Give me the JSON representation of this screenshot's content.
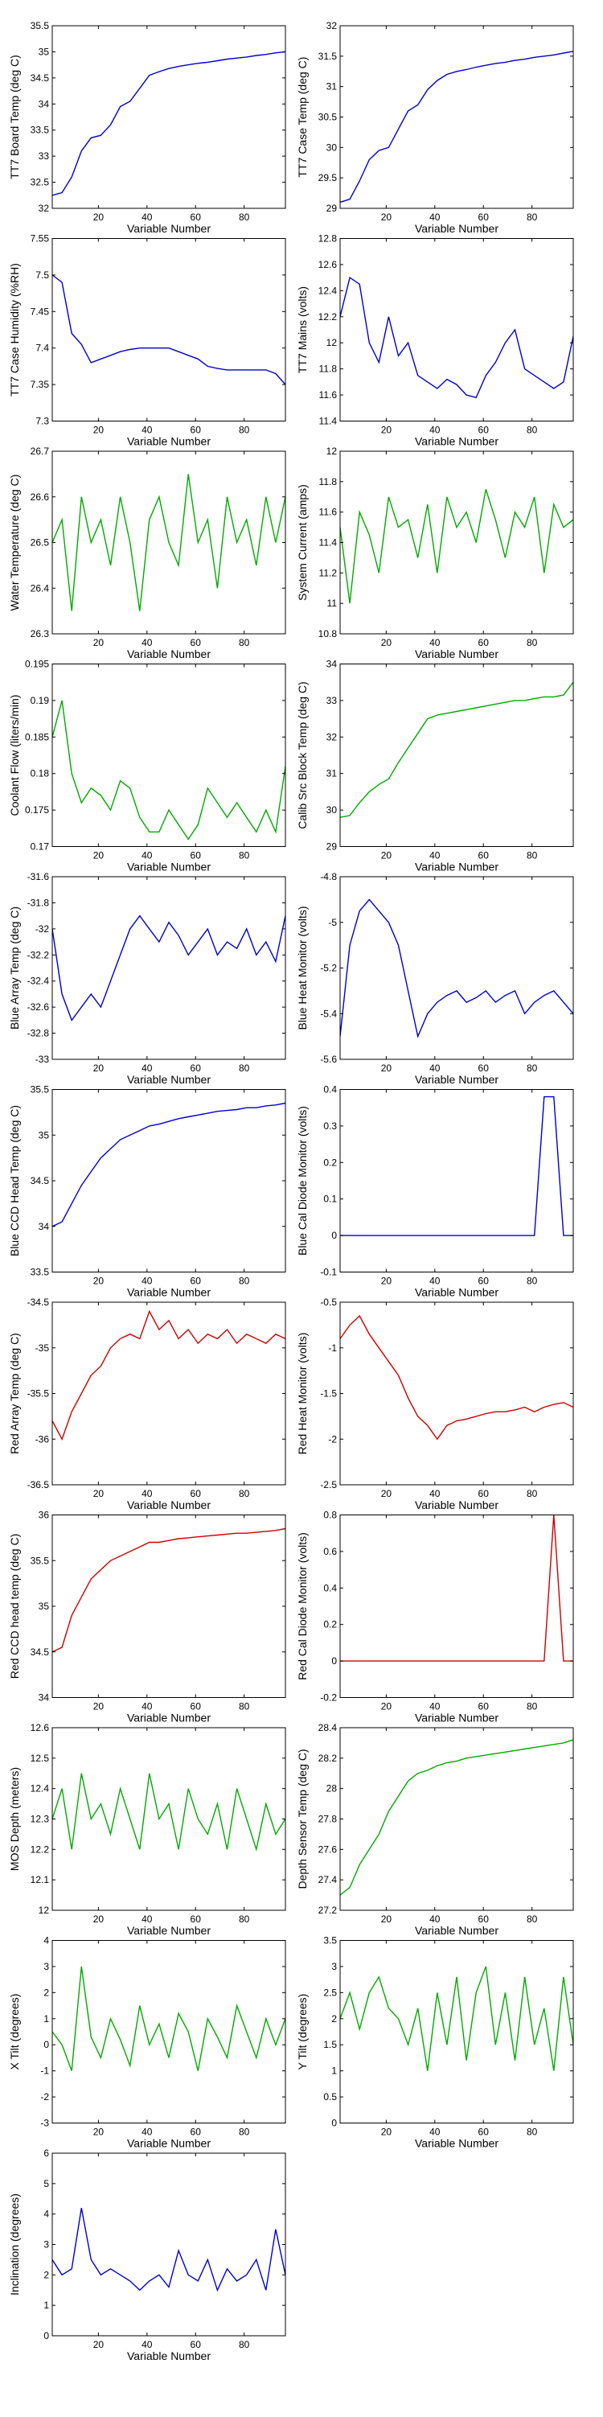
{
  "figure": {
    "colors": {
      "blue": "#0000cc",
      "green": "#00aa00",
      "red": "#cc0000",
      "axis": "#000000"
    }
  },
  "chart_data": [
    {
      "type": "line",
      "xlabel": "Variable Number",
      "ylabel": "TT7 Board Temp (deg C)",
      "color": "blue",
      "xlim": [
        1,
        97
      ],
      "ylim": [
        32,
        35.5
      ],
      "yticks": [
        "32",
        "32.5",
        "33",
        "33.5",
        "34",
        "34.5",
        "35",
        "35.5"
      ],
      "xticks": [
        "20",
        "40",
        "60",
        "80"
      ],
      "x_start": 1,
      "x_step": 4,
      "values": [
        32.25,
        32.3,
        32.6,
        33.1,
        33.35,
        33.4,
        33.6,
        33.95,
        34.05,
        34.3,
        34.55,
        34.62,
        34.68,
        34.72,
        34.75,
        34.78,
        34.8,
        34.83,
        34.86,
        34.88,
        34.9,
        34.93,
        34.95,
        34.98,
        35.0
      ]
    },
    {
      "type": "line",
      "xlabel": "Variable Number",
      "ylabel": "TT7 Case Temp (deg C)",
      "color": "blue",
      "xlim": [
        1,
        97
      ],
      "ylim": [
        29,
        32
      ],
      "yticks": [
        "29",
        "29.5",
        "30",
        "30.5",
        "31",
        "31.5",
        "32"
      ],
      "xticks": [
        "20",
        "40",
        "60",
        "80"
      ],
      "x_start": 1,
      "x_step": 4,
      "values": [
        29.1,
        29.15,
        29.45,
        29.8,
        29.95,
        30.0,
        30.3,
        30.6,
        30.7,
        30.95,
        31.1,
        31.2,
        31.25,
        31.28,
        31.32,
        31.35,
        31.38,
        31.4,
        31.43,
        31.45,
        31.48,
        31.5,
        31.52,
        31.55,
        31.58
      ]
    },
    {
      "type": "line",
      "xlabel": "Variable Number",
      "ylabel": "TT7 Case Humidity (%RH)",
      "color": "blue",
      "xlim": [
        1,
        97
      ],
      "ylim": [
        7.3,
        7.55
      ],
      "yticks": [
        "7.3",
        "7.35",
        "7.4",
        "7.45",
        "7.5",
        "7.55"
      ],
      "xticks": [
        "20",
        "40",
        "60",
        "80"
      ],
      "x_start": 1,
      "x_step": 4,
      "values": [
        7.5,
        7.49,
        7.42,
        7.405,
        7.38,
        7.385,
        7.39,
        7.395,
        7.398,
        7.4,
        7.4,
        7.4,
        7.4,
        7.395,
        7.39,
        7.385,
        7.375,
        7.372,
        7.37,
        7.37,
        7.37,
        7.37,
        7.37,
        7.365,
        7.35
      ]
    },
    {
      "type": "line",
      "xlabel": "Variable Number",
      "ylabel": "TT7 Mains  (volts)",
      "color": "blue",
      "xlim": [
        1,
        97
      ],
      "ylim": [
        11.4,
        12.8
      ],
      "yticks": [
        "11.4",
        "11.6",
        "11.8",
        "12",
        "12.2",
        "12.4",
        "12.6",
        "12.8"
      ],
      "xticks": [
        "20",
        "40",
        "60",
        "80"
      ],
      "x_start": 1,
      "x_step": 4,
      "values": [
        12.2,
        12.5,
        12.45,
        12.0,
        11.85,
        12.2,
        11.9,
        12.0,
        11.75,
        11.7,
        11.65,
        11.72,
        11.68,
        11.6,
        11.58,
        11.75,
        11.85,
        12.0,
        12.1,
        11.8,
        11.75,
        11.7,
        11.65,
        11.7,
        12.05
      ]
    },
    {
      "type": "line",
      "xlabel": "Variable Number",
      "ylabel": "Water Temperature (deg C)",
      "color": "green",
      "xlim": [
        1,
        97
      ],
      "ylim": [
        26.3,
        26.7
      ],
      "yticks": [
        "26.3",
        "26.4",
        "26.5",
        "26.6",
        "26.7"
      ],
      "xticks": [
        "20",
        "40",
        "60",
        "80"
      ],
      "x_start": 1,
      "x_step": 4,
      "values": [
        26.5,
        26.55,
        26.35,
        26.6,
        26.5,
        26.55,
        26.45,
        26.6,
        26.5,
        26.35,
        26.55,
        26.6,
        26.5,
        26.45,
        26.65,
        26.5,
        26.55,
        26.4,
        26.6,
        26.5,
        26.55,
        26.45,
        26.6,
        26.5,
        26.6
      ]
    },
    {
      "type": "line",
      "xlabel": "Variable Number",
      "ylabel": "System Current (amps)",
      "color": "green",
      "xlim": [
        1,
        97
      ],
      "ylim": [
        10.8,
        12
      ],
      "yticks": [
        "10.8",
        "11",
        "11.2",
        "11.4",
        "11.6",
        "11.8",
        "12"
      ],
      "xticks": [
        "20",
        "40",
        "60",
        "80"
      ],
      "x_start": 1,
      "x_step": 4,
      "values": [
        11.5,
        11.0,
        11.6,
        11.45,
        11.2,
        11.7,
        11.5,
        11.55,
        11.3,
        11.65,
        11.2,
        11.7,
        11.5,
        11.6,
        11.4,
        11.75,
        11.55,
        11.3,
        11.6,
        11.5,
        11.7,
        11.2,
        11.65,
        11.5,
        11.55
      ]
    },
    {
      "type": "line",
      "xlabel": "Variable Number",
      "ylabel": "Coolant Flow (liters/min)",
      "color": "green",
      "xlim": [
        1,
        97
      ],
      "ylim": [
        0.17,
        0.195
      ],
      "yticks": [
        "0.17",
        "0.175",
        "0.18",
        "0.185",
        "0.19",
        "0.195"
      ],
      "xticks": [
        "20",
        "40",
        "60",
        "80"
      ],
      "x_start": 1,
      "x_step": 4,
      "values": [
        0.185,
        0.19,
        0.18,
        0.176,
        0.178,
        0.177,
        0.175,
        0.179,
        0.178,
        0.174,
        0.172,
        0.172,
        0.175,
        0.173,
        0.171,
        0.173,
        0.178,
        0.176,
        0.174,
        0.176,
        0.174,
        0.172,
        0.175,
        0.172,
        0.181
      ]
    },
    {
      "type": "line",
      "xlabel": "Variable Number",
      "ylabel": "Calib Src Block Temp (deg C)",
      "color": "green",
      "xlim": [
        1,
        97
      ],
      "ylim": [
        29,
        34
      ],
      "yticks": [
        "29",
        "30",
        "31",
        "32",
        "33",
        "34"
      ],
      "xticks": [
        "20",
        "40",
        "60",
        "80"
      ],
      "x_start": 1,
      "x_step": 4,
      "values": [
        29.8,
        29.85,
        30.2,
        30.5,
        30.7,
        30.85,
        31.3,
        31.7,
        32.1,
        32.5,
        32.6,
        32.65,
        32.7,
        32.75,
        32.8,
        32.85,
        32.9,
        32.95,
        33.0,
        33.0,
        33.05,
        33.1,
        33.1,
        33.15,
        33.5
      ]
    },
    {
      "type": "line",
      "xlabel": "Variable Number",
      "ylabel": "Blue Array Temp (deg C)",
      "color": "blue",
      "xlim": [
        1,
        97
      ],
      "ylim": [
        -33,
        -31.6
      ],
      "yticks": [
        "-33",
        "-32.8",
        "-32.6",
        "-32.4",
        "-32.2",
        "-32",
        "-31.8",
        "-31.6"
      ],
      "xticks": [
        "20",
        "40",
        "60",
        "80"
      ],
      "x_start": 1,
      "x_step": 4,
      "values": [
        -32.0,
        -32.5,
        -32.7,
        -32.6,
        -32.5,
        -32.6,
        -32.4,
        -32.2,
        -32.0,
        -31.9,
        -32.0,
        -32.1,
        -31.95,
        -32.05,
        -32.2,
        -32.1,
        -32.0,
        -32.2,
        -32.1,
        -32.15,
        -32.0,
        -32.2,
        -32.1,
        -32.25,
        -31.9
      ]
    },
    {
      "type": "line",
      "xlabel": "Variable Number",
      "ylabel": "Blue Heat Monitor (volts)",
      "color": "blue",
      "xlim": [
        1,
        97
      ],
      "ylim": [
        -5.6,
        -4.8
      ],
      "yticks": [
        "-5.6",
        "-5.4",
        "-5.2",
        "-5",
        "-4.8"
      ],
      "xticks": [
        "20",
        "40",
        "60",
        "80"
      ],
      "x_start": 1,
      "x_step": 4,
      "values": [
        -5.5,
        -5.1,
        -4.95,
        -4.9,
        -4.95,
        -5.0,
        -5.1,
        -5.3,
        -5.5,
        -5.4,
        -5.35,
        -5.32,
        -5.3,
        -5.35,
        -5.33,
        -5.3,
        -5.35,
        -5.32,
        -5.3,
        -5.4,
        -5.35,
        -5.32,
        -5.3,
        -5.35,
        -5.4
      ]
    },
    {
      "type": "line",
      "xlabel": "Variable Number",
      "ylabel": "Blue CCD Head Temp (deg C)",
      "color": "blue",
      "xlim": [
        1,
        97
      ],
      "ylim": [
        33.5,
        35.5
      ],
      "yticks": [
        "33.5",
        "34",
        "34.5",
        "35",
        "35.5"
      ],
      "xticks": [
        "20",
        "40",
        "60",
        "80"
      ],
      "x_start": 1,
      "x_step": 4,
      "values": [
        34.0,
        34.05,
        34.25,
        34.45,
        34.6,
        34.75,
        34.85,
        34.95,
        35.0,
        35.05,
        35.1,
        35.12,
        35.15,
        35.18,
        35.2,
        35.22,
        35.24,
        35.26,
        35.27,
        35.28,
        35.3,
        35.3,
        35.32,
        35.33,
        35.35
      ]
    },
    {
      "type": "line",
      "xlabel": "Variable Number",
      "ylabel": "Blue Cal Diode Monitor (volts)",
      "color": "blue",
      "xlim": [
        1,
        97
      ],
      "ylim": [
        -0.1,
        0.4
      ],
      "yticks": [
        "-0.1",
        "0",
        "0.1",
        "0.2",
        "0.3",
        "0.4"
      ],
      "xticks": [
        "20",
        "40",
        "60",
        "80"
      ],
      "x_start": 1,
      "x_step": 4,
      "values": [
        0,
        0,
        0,
        0,
        0,
        0,
        0,
        0,
        0,
        0,
        0,
        0,
        0,
        0,
        0,
        0,
        0,
        0,
        0,
        0,
        0,
        0.38,
        0.38,
        0,
        0
      ]
    },
    {
      "type": "line",
      "xlabel": "Variable Number",
      "ylabel": "Red Array Temp (deg C)",
      "color": "red",
      "xlim": [
        1,
        97
      ],
      "ylim": [
        -36.5,
        -34.5
      ],
      "yticks": [
        "-36.5",
        "-36",
        "-35.5",
        "-35",
        "-34.5"
      ],
      "xticks": [
        "20",
        "40",
        "60",
        "80"
      ],
      "x_start": 1,
      "x_step": 4,
      "values": [
        -35.8,
        -36.0,
        -35.7,
        -35.5,
        -35.3,
        -35.2,
        -35.0,
        -34.9,
        -34.85,
        -34.9,
        -34.6,
        -34.8,
        -34.7,
        -34.9,
        -34.8,
        -34.95,
        -34.85,
        -34.9,
        -34.8,
        -34.95,
        -34.85,
        -34.9,
        -34.95,
        -34.85,
        -34.9
      ]
    },
    {
      "type": "line",
      "xlabel": "Variable Number",
      "ylabel": "Red Heat Monitor (volts)",
      "color": "red",
      "xlim": [
        1,
        97
      ],
      "ylim": [
        -2.5,
        -0.5
      ],
      "yticks": [
        "-2.5",
        "-2",
        "-1.5",
        "-1",
        "-0.5"
      ],
      "xticks": [
        "20",
        "40",
        "60",
        "80"
      ],
      "x_start": 1,
      "x_step": 4,
      "values": [
        -0.9,
        -0.75,
        -0.65,
        -0.85,
        -1.0,
        -1.15,
        -1.3,
        -1.55,
        -1.75,
        -1.85,
        -2.0,
        -1.85,
        -1.8,
        -1.78,
        -1.75,
        -1.72,
        -1.7,
        -1.7,
        -1.68,
        -1.65,
        -1.7,
        -1.65,
        -1.62,
        -1.6,
        -1.65
      ]
    },
    {
      "type": "line",
      "xlabel": "Variable Number",
      "ylabel": "Red CCD head temp (deg C)",
      "color": "red",
      "xlim": [
        1,
        97
      ],
      "ylim": [
        34,
        36
      ],
      "yticks": [
        "34",
        "34.5",
        "35",
        "35.5",
        "36"
      ],
      "xticks": [
        "20",
        "40",
        "60",
        "80"
      ],
      "x_start": 1,
      "x_step": 4,
      "values": [
        34.5,
        34.55,
        34.9,
        35.1,
        35.3,
        35.4,
        35.5,
        35.55,
        35.6,
        35.65,
        35.7,
        35.7,
        35.72,
        35.74,
        35.75,
        35.76,
        35.77,
        35.78,
        35.79,
        35.8,
        35.8,
        35.81,
        35.82,
        35.83,
        35.85
      ]
    },
    {
      "type": "line",
      "xlabel": "Variable Number",
      "ylabel": "Red Cal Diode Monitor (volts)",
      "color": "red",
      "xlim": [
        1,
        97
      ],
      "ylim": [
        -0.2,
        0.8
      ],
      "yticks": [
        "-0.2",
        "0",
        "0.2",
        "0.4",
        "0.6",
        "0.8"
      ],
      "xticks": [
        "20",
        "40",
        "60",
        "80"
      ],
      "x_start": 1,
      "x_step": 4,
      "values": [
        0,
        0,
        0,
        0,
        0,
        0,
        0,
        0,
        0,
        0,
        0,
        0,
        0,
        0,
        0,
        0,
        0,
        0,
        0,
        0,
        0,
        0,
        0.8,
        0,
        0
      ]
    },
    {
      "type": "line",
      "xlabel": "Variable Number",
      "ylabel": "MOS Depth  (meters)",
      "color": "green",
      "xlim": [
        1,
        97
      ],
      "ylim": [
        12,
        12.6
      ],
      "yticks": [
        "12",
        "12.1",
        "12.2",
        "12.3",
        "12.4",
        "12.5",
        "12.6"
      ],
      "xticks": [
        "20",
        "40",
        "60",
        "80"
      ],
      "x_start": 1,
      "x_step": 4,
      "values": [
        12.3,
        12.4,
        12.2,
        12.45,
        12.3,
        12.35,
        12.25,
        12.4,
        12.3,
        12.2,
        12.45,
        12.3,
        12.35,
        12.2,
        12.4,
        12.3,
        12.25,
        12.35,
        12.2,
        12.4,
        12.3,
        12.2,
        12.35,
        12.25,
        12.3
      ]
    },
    {
      "type": "line",
      "xlabel": "Variable Number",
      "ylabel": "Depth Sensor Temp (deg C)",
      "color": "green",
      "xlim": [
        1,
        97
      ],
      "ylim": [
        27.2,
        28.4
      ],
      "yticks": [
        "27.2",
        "27.4",
        "27.6",
        "27.8",
        "28",
        "28.2",
        "28.4"
      ],
      "xticks": [
        "20",
        "40",
        "60",
        "80"
      ],
      "x_start": 1,
      "x_step": 4,
      "values": [
        27.3,
        27.35,
        27.5,
        27.6,
        27.7,
        27.85,
        27.95,
        28.05,
        28.1,
        28.12,
        28.15,
        28.17,
        28.18,
        28.2,
        28.21,
        28.22,
        28.23,
        28.24,
        28.25,
        28.26,
        28.27,
        28.28,
        28.29,
        28.3,
        28.32
      ]
    },
    {
      "type": "line",
      "xlabel": "Variable Number",
      "ylabel": "X Tilt  (degrees)",
      "color": "green",
      "xlim": [
        1,
        97
      ],
      "ylim": [
        -3,
        4
      ],
      "yticks": [
        "-3",
        "-2",
        "-1",
        "0",
        "1",
        "2",
        "3",
        "4"
      ],
      "xticks": [
        "20",
        "40",
        "60",
        "80"
      ],
      "x_start": 1,
      "x_step": 4,
      "values": [
        0.5,
        0.0,
        -1.0,
        3.0,
        0.3,
        -0.5,
        1.0,
        0.2,
        -0.8,
        1.5,
        0.0,
        0.8,
        -0.5,
        1.2,
        0.5,
        -1.0,
        1.0,
        0.3,
        -0.5,
        1.5,
        0.5,
        -0.5,
        1.0,
        0.0,
        1.0
      ]
    },
    {
      "type": "line",
      "xlabel": "Variable Number",
      "ylabel": "Y Tilt  (degrees)",
      "color": "green",
      "xlim": [
        1,
        97
      ],
      "ylim": [
        0,
        3.5
      ],
      "yticks": [
        "0",
        "0.5",
        "1",
        "1.5",
        "2",
        "2.5",
        "3",
        "3.5"
      ],
      "xticks": [
        "20",
        "40",
        "60",
        "80"
      ],
      "x_start": 1,
      "x_step": 4,
      "values": [
        2.0,
        2.5,
        1.8,
        2.5,
        2.8,
        2.2,
        2.0,
        1.5,
        2.2,
        1.0,
        2.5,
        1.5,
        2.8,
        1.2,
        2.5,
        3.0,
        1.5,
        2.5,
        1.2,
        2.8,
        1.5,
        2.2,
        1.0,
        2.8,
        1.5
      ]
    },
    {
      "type": "line",
      "xlabel": "Variable Number",
      "ylabel": "Inclination  (degrees)",
      "color": "blue",
      "xlim": [
        1,
        97
      ],
      "ylim": [
        0,
        6
      ],
      "yticks": [
        "0",
        "1",
        "2",
        "3",
        "4",
        "5",
        "6"
      ],
      "xticks": [
        "20",
        "40",
        "60",
        "80"
      ],
      "x_start": 1,
      "x_step": 4,
      "values": [
        2.5,
        2.0,
        2.2,
        4.2,
        2.5,
        2.0,
        2.2,
        2.0,
        1.8,
        1.5,
        1.8,
        2.0,
        1.6,
        2.8,
        2.0,
        1.8,
        2.5,
        1.5,
        2.2,
        1.8,
        2.0,
        2.5,
        1.5,
        3.5,
        2.0
      ]
    }
  ]
}
